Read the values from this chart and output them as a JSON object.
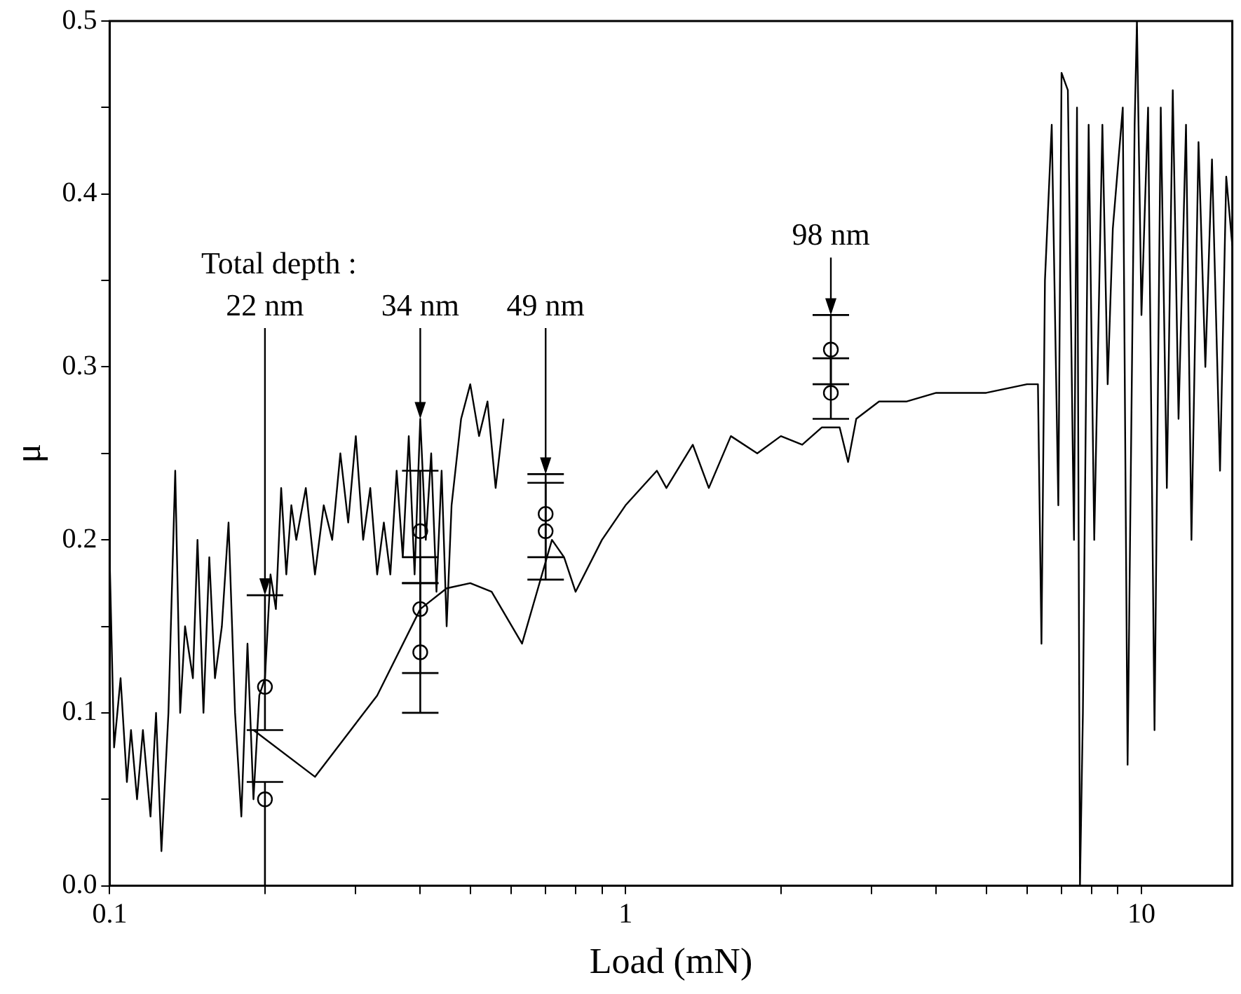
{
  "chart_data": {
    "type": "line",
    "xlabel": "Load (mN)",
    "ylabel": "μ",
    "log": "x",
    "grid": false,
    "legend": false,
    "xlim": [
      0.1,
      15
    ],
    "ylim": [
      0,
      0.5
    ],
    "xticks": [
      {
        "value": 0.1,
        "label": "0.1"
      },
      {
        "value": 0.2,
        "label": null
      },
      {
        "value": 0.3,
        "label": null
      },
      {
        "value": 0.4,
        "label": null
      },
      {
        "value": 0.5,
        "label": null
      },
      {
        "value": 0.6,
        "label": null
      },
      {
        "value": 0.7,
        "label": null
      },
      {
        "value": 0.8,
        "label": null
      },
      {
        "value": 0.9,
        "label": null
      },
      1,
      {
        "value": 2,
        "label": null
      },
      {
        "value": 3,
        "label": null
      },
      {
        "value": 4,
        "label": null
      },
      {
        "value": 5,
        "label": null
      },
      {
        "value": 6,
        "label": null
      },
      {
        "value": 7,
        "label": null
      },
      {
        "value": 8,
        "label": null
      },
      {
        "value": 9,
        "label": null
      },
      10
    ],
    "yticks": [
      {
        "value": 0,
        "label": "0.0"
      },
      {
        "value": 0.05,
        "label": null
      },
      {
        "value": 0.1,
        "label": "0.1"
      },
      {
        "value": 0.15,
        "label": null
      },
      {
        "value": 0.2,
        "label": "0.2"
      },
      {
        "value": 0.25,
        "label": null
      },
      {
        "value": 0.3,
        "label": "0.3"
      },
      {
        "value": 0.35,
        "label": null
      },
      {
        "value": 0.4,
        "label": "0.4"
      },
      {
        "value": 0.45,
        "label": null
      },
      {
        "value": 0.5,
        "label": "0.5"
      }
    ],
    "marker": "none",
    "line_style": "solid",
    "series": [
      {
        "color": "#000000",
        "x": [
          0.1,
          0.102,
          0.105,
          0.108,
          0.11,
          0.113,
          0.116,
          0.12,
          0.123,
          0.126,
          0.13,
          0.134,
          0.137,
          0.14,
          0.145,
          0.148,
          0.152,
          0.156,
          0.16,
          0.165,
          0.17,
          0.175,
          0.18,
          0.185,
          0.19,
          0.195,
          0.2,
          0.205,
          0.21,
          0.215,
          0.22,
          0.225,
          0.23,
          0.24,
          0.25,
          0.26,
          0.27,
          0.28,
          0.29,
          0.3,
          0.31,
          0.32,
          0.33,
          0.34,
          0.35,
          0.36,
          0.37,
          0.38,
          0.39,
          0.4,
          0.41,
          0.42,
          0.43,
          0.44,
          0.45,
          0.46,
          0.48,
          0.5,
          0.52,
          0.54,
          0.56,
          0.58
        ],
        "values": [
          0.19,
          0.08,
          0.12,
          0.06,
          0.09,
          0.05,
          0.09,
          0.04,
          0.1,
          0.02,
          0.1,
          0.24,
          0.1,
          0.15,
          0.12,
          0.2,
          0.1,
          0.19,
          0.12,
          0.15,
          0.21,
          0.1,
          0.04,
          0.14,
          0.05,
          0.11,
          0.12,
          0.18,
          0.16,
          0.23,
          0.18,
          0.22,
          0.2,
          0.23,
          0.18,
          0.22,
          0.2,
          0.25,
          0.21,
          0.26,
          0.2,
          0.23,
          0.18,
          0.21,
          0.18,
          0.24,
          0.19,
          0.26,
          0.18,
          0.27,
          0.2,
          0.25,
          0.17,
          0.24,
          0.15,
          0.22,
          0.27,
          0.29,
          0.26,
          0.28,
          0.23,
          0.27
        ]
      },
      {
        "color": "#000000",
        "x": [
          0.19,
          0.25,
          0.33,
          0.4,
          0.45,
          0.5,
          0.55,
          0.63,
          0.72,
          0.76,
          0.8,
          0.9,
          1.0,
          1.15,
          1.2,
          1.35,
          1.45,
          1.6,
          1.8,
          2.0,
          2.2,
          2.4,
          2.6,
          2.7,
          2.8,
          3.1,
          3.5,
          4,
          5,
          6,
          6.3,
          6.4,
          6.5,
          6.7,
          6.9,
          7.0,
          7.2,
          7.4,
          7.5,
          7.6,
          7.7,
          7.9,
          8.1,
          8.4,
          8.6,
          8.8,
          9.2,
          9.4,
          9.7,
          9.8,
          10,
          10.3,
          10.6,
          10.9,
          11.2,
          11.5,
          11.8,
          12.2,
          12.5,
          12.9,
          13.3,
          13.7,
          14.2,
          14.6,
          15
        ],
        "values": [
          0.09,
          0.063,
          0.11,
          0.16,
          0.172,
          0.175,
          0.17,
          0.14,
          0.2,
          0.19,
          0.17,
          0.2,
          0.22,
          0.24,
          0.23,
          0.255,
          0.23,
          0.26,
          0.25,
          0.26,
          0.255,
          0.265,
          0.265,
          0.245,
          0.27,
          0.28,
          0.28,
          0.285,
          0.285,
          0.29,
          0.29,
          0.14,
          0.35,
          0.44,
          0.22,
          0.47,
          0.46,
          0.2,
          0.45,
          0.0,
          0.1,
          0.44,
          0.2,
          0.44,
          0.29,
          0.38,
          0.45,
          0.07,
          0.44,
          0.5,
          0.33,
          0.45,
          0.09,
          0.45,
          0.23,
          0.46,
          0.27,
          0.44,
          0.2,
          0.43,
          0.3,
          0.42,
          0.24,
          0.41,
          0.37
        ]
      },
      {
        "type": "scatter",
        "color": "#000000",
        "marker": "circle",
        "x": [
          0.2,
          0.2,
          0.4,
          0.4,
          0.4,
          0.7,
          0.7,
          2.5,
          2.5
        ],
        "values": [
          0.115,
          0.05,
          0.205,
          0.16,
          0.135,
          0.215,
          0.205,
          0.31,
          0.285
        ],
        "errors": [
          [
            0.09,
            0.168
          ],
          [
            0.0,
            0.06
          ],
          [
            0.175,
            0.24
          ],
          [
            0.123,
            0.19
          ],
          [
            0.1,
            0.175
          ],
          [
            0.19,
            0.238
          ],
          [
            0.177,
            0.233
          ],
          [
            0.29,
            0.33
          ],
          [
            0.27,
            0.305
          ]
        ]
      }
    ],
    "annotations": [
      "Total depth :",
      {
        "text": "22 nm",
        "x": 0.2,
        "y": 0.168
      },
      {
        "text": "34 nm",
        "x": 0.4,
        "y": 0.27
      },
      {
        "text": "49 nm",
        "x": 0.7,
        "y": 0.238
      },
      {
        "text": "98 nm",
        "x": 2.5,
        "y": 0.33
      }
    ]
  }
}
